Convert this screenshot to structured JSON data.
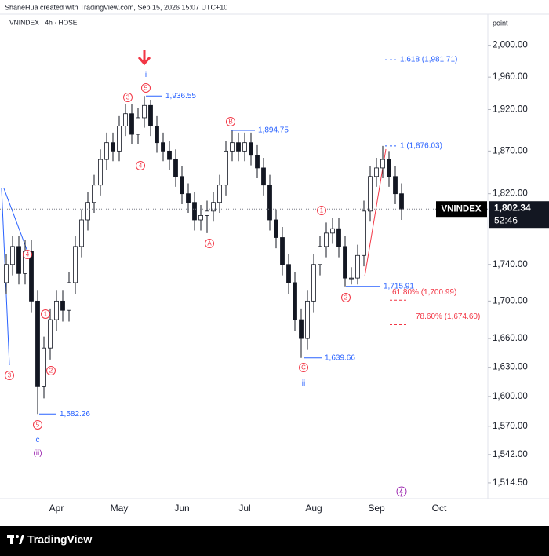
{
  "header": "ShaneHua created with TradingView.com, Sep 15, 2026 15:07 UTC+10",
  "footer": "TradingView",
  "chart_data": {
    "type": "candlestick",
    "symbol_line": "VNINDEX · 4h · HOSE",
    "y_axis_label": "point",
    "log_scale": true,
    "grid": false,
    "color": "#131722",
    "categories": [
      null,
      null,
      null,
      null,
      null,
      null,
      null,
      null,
      "Apr",
      null,
      null,
      null,
      null,
      null,
      null,
      null,
      null,
      null,
      "May",
      null,
      null,
      null,
      null,
      null,
      null,
      null,
      null,
      null,
      "Jun",
      null,
      null,
      null,
      null,
      null,
      null,
      null,
      null,
      null,
      "Jul",
      null,
      null,
      null,
      null,
      null,
      null,
      null,
      null,
      null,
      null,
      "Aug",
      null,
      null,
      null,
      null,
      null,
      null,
      null,
      null,
      null,
      "Sep",
      null,
      null,
      null,
      null,
      null,
      null,
      null,
      null,
      null,
      "Oct"
    ],
    "open": [
      1720,
      1740,
      1760,
      1730,
      1755,
      1700,
      1610,
      1650,
      1680,
      1700,
      1690,
      1720,
      1760,
      1790,
      1810,
      1830,
      1860,
      1880,
      1870,
      1900,
      1915,
      1890,
      1910,
      1925,
      1900,
      1880,
      1870,
      1860,
      1840,
      1820,
      1810,
      1790,
      1795,
      1800,
      1810,
      1830,
      1870,
      1880,
      1870,
      1880,
      1865,
      1850,
      1830,
      1790,
      1770,
      1740,
      1720,
      1680,
      1660,
      1700,
      1740,
      1760,
      1775,
      1780,
      1760,
      1725,
      1725,
      1750,
      1800,
      1840,
      1850,
      1860,
      1840,
      1820,
      null,
      null,
      null,
      null,
      null,
      null
    ],
    "high": [
      1752,
      1772,
      1772,
      1767,
      1767,
      1712,
      1662,
      1692,
      1712,
      1712,
      1732,
      1772,
      1802,
      1822,
      1842,
      1872,
      1892,
      1892,
      1912,
      1927,
      1927,
      1922,
      1936.55,
      1932,
      1912,
      1892,
      1882,
      1872,
      1852,
      1832,
      1822,
      1807,
      1812,
      1822,
      1842,
      1882,
      1894.75,
      1892,
      1892,
      1892,
      1877,
      1862,
      1842,
      1802,
      1782,
      1752,
      1732,
      1692,
      1712,
      1752,
      1772,
      1787,
      1792,
      1792,
      1772,
      1737,
      1762,
      1812,
      1852,
      1862,
      1876.03,
      1870,
      1852,
      1832,
      null,
      null,
      null,
      null,
      null,
      null
    ],
    "low": [
      1708,
      1728,
      1718,
      1718,
      1688,
      1582.26,
      1598,
      1638,
      1668,
      1678,
      1678,
      1708,
      1748,
      1778,
      1798,
      1818,
      1848,
      1858,
      1858,
      1888,
      1878,
      1878,
      1898,
      1888,
      1868,
      1858,
      1848,
      1828,
      1808,
      1798,
      1778,
      1778,
      1775,
      1788,
      1798,
      1818,
      1858,
      1858,
      1858,
      1853,
      1838,
      1818,
      1778,
      1758,
      1728,
      1708,
      1668,
      1639.66,
      1648,
      1688,
      1728,
      1748,
      1763,
      1748,
      1715.91,
      1718,
      1718,
      1738,
      1788,
      1828,
      1838,
      1828,
      1808,
      1790,
      null,
      null,
      null,
      null,
      null,
      null
    ],
    "close": [
      1740,
      1760,
      1730,
      1755,
      1700,
      1610,
      1650,
      1680,
      1700,
      1690,
      1720,
      1760,
      1790,
      1810,
      1830,
      1860,
      1880,
      1870,
      1900,
      1915,
      1890,
      1910,
      1925,
      1900,
      1880,
      1870,
      1860,
      1840,
      1820,
      1810,
      1790,
      1795,
      1800,
      1810,
      1830,
      1870,
      1880,
      1870,
      1880,
      1865,
      1850,
      1830,
      1790,
      1770,
      1740,
      1720,
      1680,
      1660,
      1700,
      1740,
      1760,
      1775,
      1780,
      1760,
      1725,
      1725,
      1750,
      1800,
      1840,
      1850,
      1860,
      1840,
      1820,
      1802.34,
      null,
      null,
      null,
      null,
      null,
      null
    ],
    "ylim": [
      1499.4,
      2040
    ],
    "yticks": [
      {
        "value": 2000,
        "label": "2,000.00"
      },
      {
        "value": 1960,
        "label": "1,960.00"
      },
      {
        "value": 1920,
        "label": "1,920.00"
      },
      {
        "value": 1870,
        "label": "1,870.00"
      },
      {
        "value": 1820,
        "label": "1,820.00"
      },
      {
        "value": 1740,
        "label": "1,740.00"
      },
      {
        "value": 1700,
        "label": "1,700.00"
      },
      {
        "value": 1660,
        "label": "1,660.00"
      },
      {
        "value": 1630,
        "label": "1,630.00"
      },
      {
        "value": 1600,
        "label": "1,600.00"
      },
      {
        "value": 1570,
        "label": "1,570.00"
      },
      {
        "value": 1542,
        "label": "1,542.00"
      },
      {
        "value": 1514.5,
        "label": "1,514.50"
      }
    ],
    "last_price": {
      "symbol": "VNINDEX",
      "label": "1,802.34",
      "countdown": "52:46"
    },
    "pivots": [
      {
        "value": 1936.55,
        "label": "1,936.55"
      },
      {
        "value": 1894.75,
        "label": "1,894.75"
      },
      {
        "value": 1582.26,
        "label": "1,582.26"
      },
      {
        "value": 1639.66,
        "label": "1,639.66"
      },
      {
        "value": 1715.91,
        "label": "1,715.91"
      }
    ],
    "fib_levels": [
      {
        "value": 1981.71,
        "label": "1.618 (1,981.71)",
        "color": "#2962ff"
      },
      {
        "value": 1876.03,
        "label": "1 (1,876.03)",
        "color": "#2962ff"
      },
      {
        "value": 1700.99,
        "label": "61.80% (1,700.99)",
        "color": "#f23645"
      },
      {
        "value": 1674.6,
        "label": "78.60% (1,674.60)",
        "color": "#f23645"
      }
    ],
    "wave_labels": [
      {
        "text": "3",
        "circled": true,
        "color": "#f23645"
      },
      {
        "text": "4",
        "circled": true,
        "color": "#f23645"
      },
      {
        "text": "1",
        "circled": true,
        "color": "#f23645"
      },
      {
        "text": "2",
        "circled": true,
        "color": "#f23645"
      },
      {
        "text": "5",
        "circled": true,
        "color": "#f23645"
      },
      {
        "text": "c",
        "circled": false,
        "color": "#2962ff"
      },
      {
        "text": "(ii)",
        "circled": false,
        "color": "#9c27b0"
      },
      {
        "text": "3",
        "circled": true,
        "color": "#f23645"
      },
      {
        "text": "5",
        "circled": true,
        "color": "#f23645"
      },
      {
        "text": "i",
        "circled": false,
        "color": "#2962ff"
      },
      {
        "text": "4",
        "circled": true,
        "color": "#f23645"
      },
      {
        "text": "B",
        "circled": true,
        "color": "#f23645"
      },
      {
        "text": "A",
        "circled": true,
        "color": "#f23645"
      },
      {
        "text": "1",
        "circled": true,
        "color": "#f23645"
      },
      {
        "text": "2",
        "circled": true,
        "color": "#f23645"
      },
      {
        "text": "C",
        "circled": true,
        "color": "#f23645"
      },
      {
        "text": "ii",
        "circled": false,
        "color": "#2962ff"
      }
    ]
  }
}
